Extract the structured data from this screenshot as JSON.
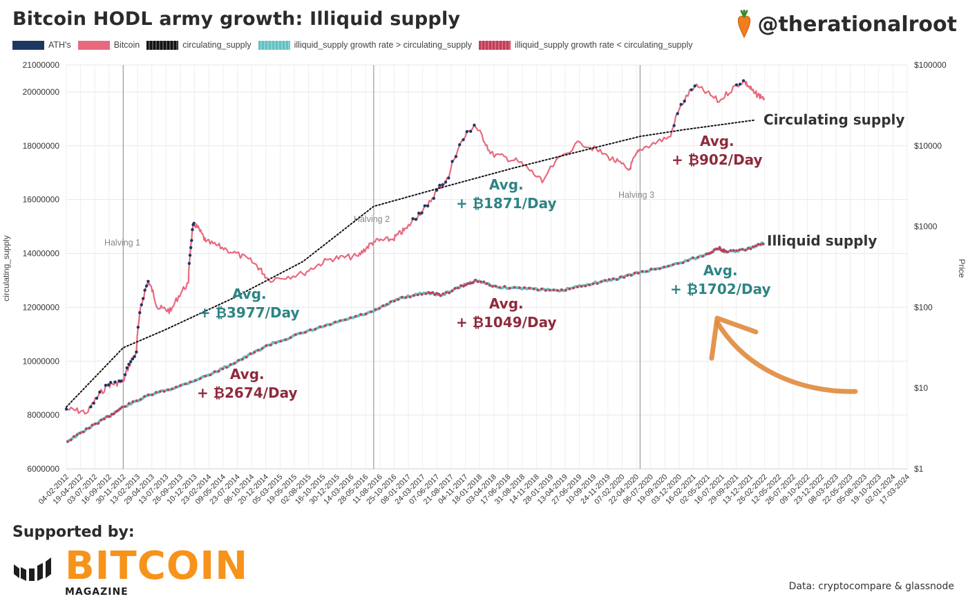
{
  "header": {
    "title": "Bitcoin HODL army growth: Illiquid supply",
    "handle": "@therationalroot"
  },
  "footer": {
    "supported_by": "Supported by:",
    "logo_word": "BITCOIN",
    "logo_sub": "MAGAZINE",
    "credit": "Data: cryptocompare & glassnode"
  },
  "colors": {
    "ath": "#1d3763",
    "bitcoin": "#e8697e",
    "circulating": "#111111",
    "growth_gt": "#64c0c0",
    "growth_lt": "#c23d57",
    "annotation_red": "#8e2a3c",
    "annotation_teal": "#2e8484",
    "arrow": "#e08a3c",
    "logo": "#f7931a"
  },
  "annotations": [
    {
      "id": "halving1-illiquid",
      "avg": "Avg.",
      "rate": "+ ₿2674/Day",
      "color": "red"
    },
    {
      "id": "halving1-circulating",
      "avg": "Avg.",
      "rate": "+ ₿3977/Day",
      "color": "teal"
    },
    {
      "id": "halving2-illiquid",
      "avg": "Avg.",
      "rate": "+ ₿1049/Day",
      "color": "red"
    },
    {
      "id": "halving2-circulating",
      "avg": "Avg.",
      "rate": "+ ₿1871/Day",
      "color": "teal"
    },
    {
      "id": "halving3-circulating",
      "avg": "Avg.",
      "rate": "+ ₿902/Day",
      "color": "red"
    },
    {
      "id": "halving3-illiquid",
      "avg": "Avg.",
      "rate": "+ ₿1702/Day",
      "color": "teal"
    }
  ],
  "series_labels": {
    "circulating": "Circulating supply",
    "illiquid": "Illiquid supply"
  },
  "chart_data": {
    "type": "line",
    "title": "Bitcoin HODL army growth: Illiquid supply",
    "ylabel": "circulating_supply",
    "y2label": "Price",
    "ylim": [
      6000000,
      21000000
    ],
    "y2lim": [
      1,
      100000
    ],
    "y2scale": "log",
    "yticks": [
      "6000000",
      "8000000",
      "10000000",
      "12000000",
      "14000000",
      "16000000",
      "18000000",
      "20000000",
      "21000000"
    ],
    "ytick_values": [
      6000000,
      8000000,
      10000000,
      12000000,
      14000000,
      16000000,
      18000000,
      20000000,
      21000000
    ],
    "y2ticks": [
      "$1",
      "$10",
      "$100",
      "$1000",
      "$10000",
      "$100000"
    ],
    "y2tick_values": [
      1,
      10,
      100,
      1000,
      10000,
      100000
    ],
    "xticks": [
      "04-02-2012",
      "19-04-2012",
      "03-07-2012",
      "16-09-2012",
      "30-11-2012",
      "13-02-2013",
      "29-04-2013",
      "13-07-2013",
      "26-09-2013",
      "10-12-2013",
      "23-02-2014",
      "09-05-2014",
      "23-07-2014",
      "06-10-2014",
      "20-12-2014",
      "05-03-2015",
      "19-05-2015",
      "02-08-2015",
      "16-10-2015",
      "30-12-2015",
      "14-03-2016",
      "28-05-2016",
      "11-08-2016",
      "25-10-2016",
      "08-01-2017",
      "24-03-2017",
      "07-06-2017",
      "21-08-2017",
      "04-11-2017",
      "18-01-2018",
      "03-04-2018",
      "17-06-2018",
      "31-08-2018",
      "14-11-2018",
      "28-01-2019",
      "13-04-2019",
      "27-06-2019",
      "10-09-2019",
      "24-11-2019",
      "07-02-2020",
      "22-04-2020",
      "06-07-2020",
      "19-09-2020",
      "03-12-2020",
      "16-02-2021",
      "02-05-2021",
      "16-07-2021",
      "29-09-2021",
      "13-12-2021",
      "26-02-2022",
      "12-05-2022",
      "26-07-2022",
      "09-10-2022",
      "23-12-2022",
      "08-03-2023",
      "22-05-2023",
      "05-08-2023",
      "19-10-2023",
      "02-01-2024",
      "17-03-2024"
    ],
    "x_range": [
      2012.09,
      2024.21
    ],
    "halvings": [
      {
        "label": "Halving 1",
        "year": 2012.91
      },
      {
        "label": "Halving 2",
        "year": 2016.52
      },
      {
        "label": "Halving 3",
        "year": 2020.36
      }
    ],
    "legend": [
      "ATH's",
      "Bitcoin",
      "circulating_supply",
      "illiquid_supply growth rate > circulating_supply",
      "illiquid_supply growth rate < circulating_supply"
    ],
    "series": [
      {
        "name": "circulating_supply",
        "axis": "left",
        "style": "dotted",
        "points": [
          [
            2012.09,
            8300000
          ],
          [
            2012.91,
            10500000
          ],
          [
            2013.5,
            11150000
          ],
          [
            2014.5,
            12350000
          ],
          [
            2015.5,
            13700000
          ],
          [
            2016.52,
            15750000
          ],
          [
            2017.5,
            16450000
          ],
          [
            2018.5,
            17150000
          ],
          [
            2019.5,
            17800000
          ],
          [
            2020.36,
            18350000
          ],
          [
            2021.0,
            18600000
          ],
          [
            2022.0,
            18950000
          ]
        ]
      },
      {
        "name": "illiquid_supply",
        "axis": "left",
        "style": "marked",
        "points": [
          [
            2012.09,
            7000000
          ],
          [
            2012.4,
            7500000
          ],
          [
            2012.7,
            7950000
          ],
          [
            2012.91,
            8300000
          ],
          [
            2013.3,
            8750000
          ],
          [
            2013.7,
            9050000
          ],
          [
            2014.2,
            9550000
          ],
          [
            2014.6,
            10050000
          ],
          [
            2015.0,
            10600000
          ],
          [
            2015.5,
            11050000
          ],
          [
            2016.0,
            11450000
          ],
          [
            2016.52,
            11850000
          ],
          [
            2016.9,
            12350000
          ],
          [
            2017.3,
            12550000
          ],
          [
            2017.5,
            12450000
          ],
          [
            2017.8,
            12800000
          ],
          [
            2018.0,
            13000000
          ],
          [
            2018.3,
            12750000
          ],
          [
            2018.8,
            12700000
          ],
          [
            2019.2,
            12600000
          ],
          [
            2019.6,
            12850000
          ],
          [
            2020.0,
            13050000
          ],
          [
            2020.36,
            13300000
          ],
          [
            2020.8,
            13550000
          ],
          [
            2021.3,
            13950000
          ],
          [
            2021.5,
            14200000
          ],
          [
            2021.6,
            14050000
          ],
          [
            2021.9,
            14150000
          ],
          [
            2022.15,
            14400000
          ]
        ]
      },
      {
        "name": "Bitcoin",
        "axis": "right",
        "scale": "log",
        "style": "line",
        "points": [
          [
            2012.09,
            5.5
          ],
          [
            2012.4,
            5
          ],
          [
            2012.7,
            11
          ],
          [
            2012.91,
            12
          ],
          [
            2013.1,
            28
          ],
          [
            2013.27,
            210
          ],
          [
            2013.4,
            100
          ],
          [
            2013.6,
            90
          ],
          [
            2013.85,
            200
          ],
          [
            2013.93,
            1100
          ],
          [
            2014.1,
            650
          ],
          [
            2014.4,
            520
          ],
          [
            2014.8,
            350
          ],
          [
            2015.0,
            220
          ],
          [
            2015.5,
            260
          ],
          [
            2015.9,
            400
          ],
          [
            2016.3,
            430
          ],
          [
            2016.52,
            650
          ],
          [
            2016.8,
            700
          ],
          [
            2017.0,
            950
          ],
          [
            2017.3,
            1800
          ],
          [
            2017.6,
            4000
          ],
          [
            2017.97,
            18000
          ],
          [
            2018.2,
            8000
          ],
          [
            2018.6,
            6400
          ],
          [
            2018.95,
            3500
          ],
          [
            2019.5,
            11000
          ],
          [
            2019.9,
            7300
          ],
          [
            2020.2,
            5000
          ],
          [
            2020.36,
            9000
          ],
          [
            2020.8,
            13000
          ],
          [
            2021.15,
            55000
          ],
          [
            2021.5,
            35000
          ],
          [
            2021.85,
            64000
          ],
          [
            2022.0,
            45000
          ],
          [
            2022.15,
            39000
          ]
        ]
      }
    ]
  }
}
